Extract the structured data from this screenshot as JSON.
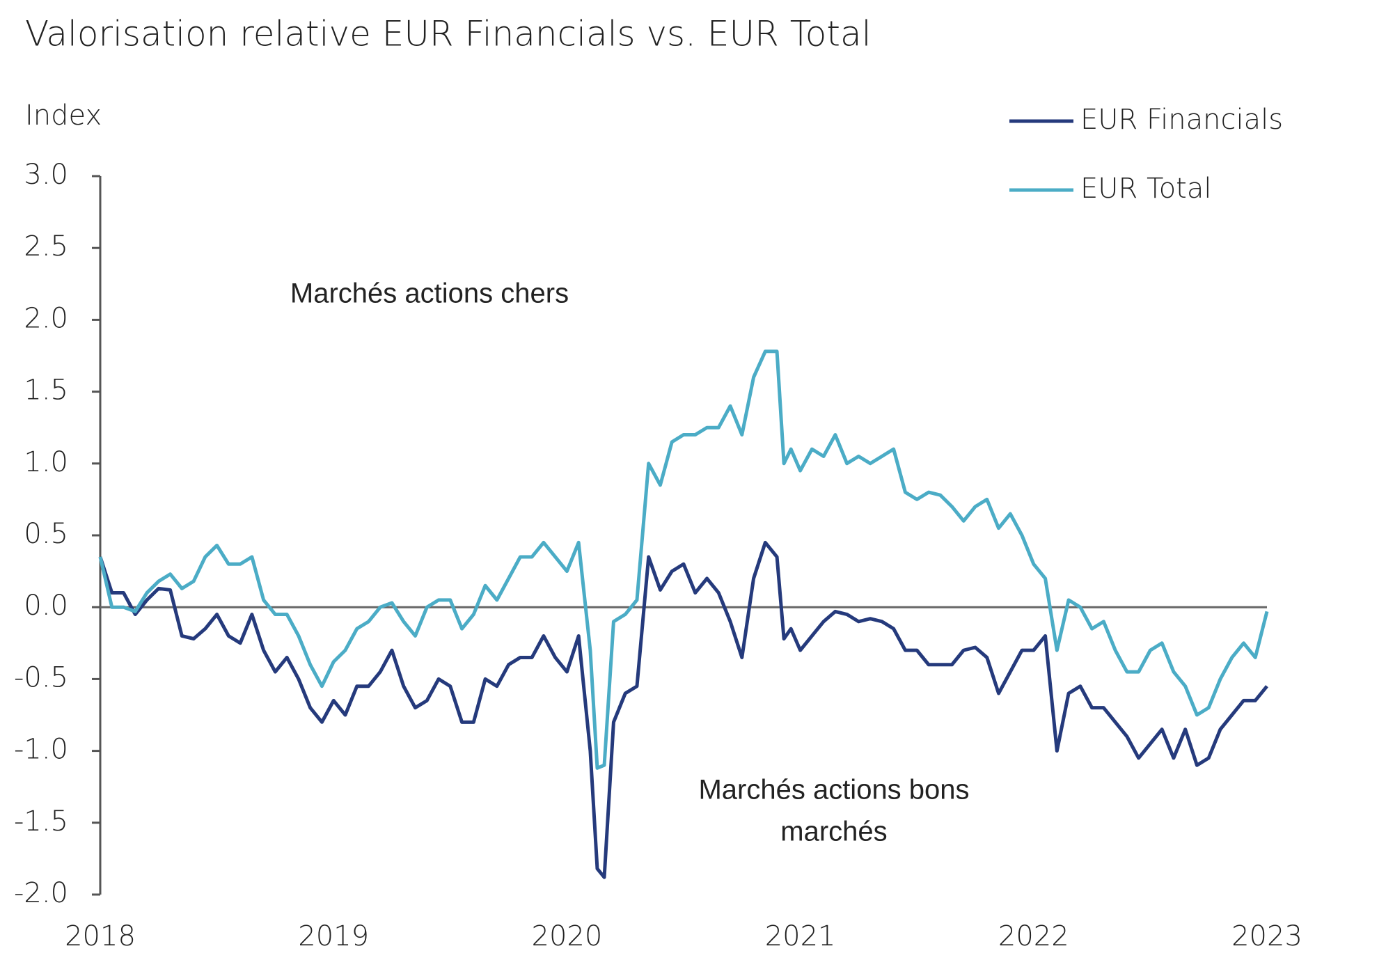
{
  "chart_data": {
    "type": "line",
    "title": "Valorisation relative EUR Financials vs. EUR Total",
    "y_label": "Index",
    "annotations": [
      {
        "lines": [
          "Marchés actions chers"
        ]
      },
      {
        "lines": [
          "Marchés actions bons",
          "marchés"
        ]
      }
    ],
    "xlim": [
      2018,
      2023
    ],
    "xticks": [
      2018,
      2019,
      2020,
      2021,
      2022,
      2023
    ],
    "ylim": [
      -2,
      3
    ],
    "yticks": [
      {
        "value": 3,
        "label": "3.0"
      },
      2.5,
      {
        "value": 2,
        "label": "2.0"
      },
      1.5,
      {
        "value": 1,
        "label": "1.0"
      },
      0.5,
      {
        "value": 0,
        "label": "0.0"
      },
      -0.5,
      {
        "value": -1,
        "label": "-1.0"
      },
      -1.5,
      {
        "value": -2,
        "label": "-2.0"
      }
    ],
    "hline": 0,
    "legend": "top-right",
    "x": [
      2018.0,
      2018.05,
      2018.1,
      2018.15,
      2018.2,
      2018.25,
      2018.3,
      2018.35,
      2018.4,
      2018.45,
      2018.5,
      2018.55,
      2018.6,
      2018.65,
      2018.7,
      2018.75,
      2018.8,
      2018.85,
      2018.9,
      2018.95,
      2019.0,
      2019.05,
      2019.1,
      2019.15,
      2019.2,
      2019.25,
      2019.3,
      2019.35,
      2019.4,
      2019.45,
      2019.5,
      2019.55,
      2019.6,
      2019.65,
      2019.7,
      2019.75,
      2019.8,
      2019.85,
      2019.9,
      2019.95,
      2020.0,
      2020.05,
      2020.1,
      2020.13,
      2020.16,
      2020.2,
      2020.25,
      2020.3,
      2020.35,
      2020.4,
      2020.45,
      2020.5,
      2020.55,
      2020.6,
      2020.65,
      2020.7,
      2020.75,
      2020.8,
      2020.85,
      2020.9,
      2020.93,
      2020.96,
      2021.0,
      2021.05,
      2021.1,
      2021.15,
      2021.2,
      2021.25,
      2021.3,
      2021.35,
      2021.4,
      2021.45,
      2021.5,
      2021.55,
      2021.6,
      2021.65,
      2021.7,
      2021.75,
      2021.8,
      2021.85,
      2021.9,
      2021.95,
      2022.0,
      2022.05,
      2022.1,
      2022.15,
      2022.2,
      2022.25,
      2022.3,
      2022.35,
      2022.4,
      2022.45,
      2022.5,
      2022.55,
      2022.6,
      2022.65,
      2022.7,
      2022.75,
      2022.8,
      2022.85,
      2022.9,
      2022.95,
      2023.0
    ],
    "series": [
      {
        "name": "EUR Financials",
        "color": "#253a7c",
        "values": [
          0.35,
          0.1,
          0.1,
          -0.05,
          0.05,
          0.13,
          0.12,
          -0.2,
          -0.22,
          -0.15,
          -0.05,
          -0.2,
          -0.25,
          -0.05,
          -0.3,
          -0.45,
          -0.35,
          -0.5,
          -0.7,
          -0.8,
          -0.65,
          -0.75,
          -0.55,
          -0.55,
          -0.45,
          -0.3,
          -0.55,
          -0.7,
          -0.65,
          -0.5,
          -0.55,
          -0.8,
          -0.8,
          -0.5,
          -0.55,
          -0.4,
          -0.35,
          -0.35,
          -0.2,
          -0.35,
          -0.45,
          -0.2,
          -1.0,
          -1.82,
          -1.88,
          -0.8,
          -0.6,
          -0.55,
          0.35,
          0.12,
          0.25,
          0.3,
          0.1,
          0.2,
          0.1,
          -0.1,
          -0.35,
          0.2,
          0.45,
          0.35,
          -0.22,
          -0.15,
          -0.3,
          -0.2,
          -0.1,
          -0.03,
          -0.05,
          -0.1,
          -0.08,
          -0.1,
          -0.15,
          -0.3,
          -0.3,
          -0.4,
          -0.4,
          -0.4,
          -0.3,
          -0.28,
          -0.35,
          -0.6,
          -0.45,
          -0.3,
          -0.3,
          -0.2,
          -1.0,
          -0.6,
          -0.55,
          -0.7,
          -0.7,
          -0.8,
          -0.9,
          -1.05,
          -0.95,
          -0.85,
          -1.05,
          -0.85,
          -1.1,
          -1.05,
          -0.85,
          -0.75,
          -0.65,
          -0.65,
          -0.55
        ]
      },
      {
        "name": "EUR Total",
        "color": "#4bacc6",
        "values": [
          0.35,
          0.0,
          0.0,
          -0.03,
          0.1,
          0.18,
          0.23,
          0.13,
          0.18,
          0.35,
          0.43,
          0.3,
          0.3,
          0.35,
          0.05,
          -0.05,
          -0.05,
          -0.2,
          -0.4,
          -0.55,
          -0.38,
          -0.3,
          -0.15,
          -0.1,
          0.0,
          0.03,
          -0.1,
          -0.2,
          0.0,
          0.05,
          0.05,
          -0.15,
          -0.05,
          0.15,
          0.05,
          0.2,
          0.35,
          0.35,
          0.45,
          0.35,
          0.25,
          0.45,
          -0.3,
          -1.12,
          -1.1,
          -0.1,
          -0.05,
          0.05,
          1.0,
          0.85,
          1.15,
          1.2,
          1.2,
          1.25,
          1.25,
          1.4,
          1.2,
          1.6,
          1.78,
          1.78,
          1.0,
          1.1,
          0.95,
          1.1,
          1.05,
          1.2,
          1.0,
          1.05,
          1.0,
          1.05,
          1.1,
          0.8,
          0.75,
          0.8,
          0.78,
          0.7,
          0.6,
          0.7,
          0.75,
          0.55,
          0.65,
          0.5,
          0.3,
          0.2,
          -0.3,
          0.05,
          0.0,
          -0.15,
          -0.1,
          -0.3,
          -0.45,
          -0.45,
          -0.3,
          -0.25,
          -0.45,
          -0.55,
          -0.75,
          -0.7,
          -0.5,
          -0.35,
          -0.25,
          -0.35,
          -0.03
        ]
      }
    ]
  }
}
